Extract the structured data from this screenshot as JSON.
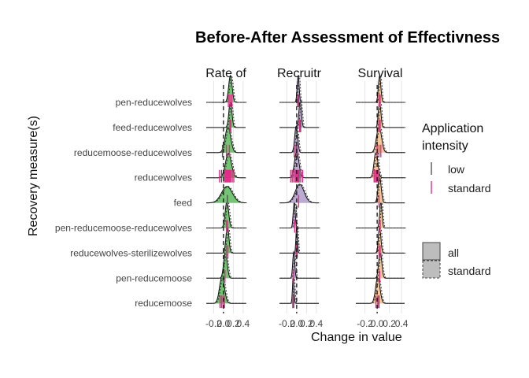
{
  "chart_data": {
    "type": "ridgeline",
    "title": "Before-After Assessment of Effectivness",
    "xlabel": "Change in value",
    "ylabel": "Recovery measure(s)",
    "xlim": [
      -0.35,
      0.45
    ],
    "x_ticks": [
      -0.2,
      0.0,
      0.2,
      0.4
    ],
    "x_tick_labels": [
      "-0.2",
      "0.0",
      "0.2",
      "0.4"
    ],
    "reference_line_x": 0,
    "categories": [
      "pen-reducewolves",
      "feed-reducewolves",
      "reducemoose-reducewolves",
      "reducewolves",
      "feed",
      "pen-reducemoose-reducewolves",
      "reducewolves-sterilizewolves",
      "pen-reducemoose",
      "reducemoose"
    ],
    "panels": [
      {
        "label": "Rate of",
        "fill": "#6cc26c",
        "series": [
          {
            "mean": 0.14,
            "sd": 0.035,
            "rugs": [
              {
                "x": 0.1,
                "c": "standard"
              },
              {
                "x": 0.13,
                "c": "standard"
              },
              {
                "x": 0.17,
                "c": "standard"
              }
            ]
          },
          {
            "mean": 0.14,
            "sd": 0.03,
            "rugs": [
              {
                "x": 0.13,
                "c": "standard"
              },
              {
                "x": 0.15,
                "c": "standard"
              }
            ]
          },
          {
            "mean": 0.09,
            "sd": 0.055,
            "rugs": [
              {
                "x": -0.02,
                "c": "low"
              },
              {
                "x": 0.06,
                "c": "standard"
              },
              {
                "x": 0.12,
                "c": "standard"
              }
            ]
          },
          {
            "mean": 0.1,
            "sd": 0.06,
            "rugs": [
              {
                "x": -0.08,
                "c": "standard"
              },
              {
                "x": -0.04,
                "c": "low"
              },
              {
                "x": 0.0,
                "c": "standard"
              },
              {
                "x": 0.03,
                "c": "standard"
              },
              {
                "x": 0.05,
                "c": "standard"
              },
              {
                "x": 0.07,
                "c": "standard"
              },
              {
                "x": 0.09,
                "c": "standard"
              },
              {
                "x": 0.11,
                "c": "standard"
              },
              {
                "x": 0.13,
                "c": "standard"
              },
              {
                "x": 0.15,
                "c": "standard"
              },
              {
                "x": 0.18,
                "c": "standard"
              },
              {
                "x": 0.21,
                "c": "standard"
              }
            ]
          },
          {
            "mean": 0.07,
            "sd": 0.11,
            "rugs": [
              {
                "x": 0.08,
                "c": "low"
              }
            ]
          },
          {
            "mean": 0.07,
            "sd": 0.035,
            "rugs": [
              {
                "x": 0.06,
                "c": "standard"
              },
              {
                "x": 0.08,
                "c": "standard"
              }
            ]
          },
          {
            "mean": 0.08,
            "sd": 0.03,
            "rugs": [
              {
                "x": 0.06,
                "c": "standard"
              },
              {
                "x": 0.09,
                "c": "standard"
              }
            ]
          },
          {
            "mean": 0.04,
            "sd": 0.035,
            "rugs": [
              {
                "x": 0.03,
                "c": "standard"
              }
            ]
          },
          {
            "mean": -0.03,
            "sd": 0.05,
            "rugs": [
              {
                "x": -0.07,
                "c": "standard"
              },
              {
                "x": -0.04,
                "c": "standard"
              },
              {
                "x": -0.01,
                "c": "standard"
              },
              {
                "x": 0.02,
                "c": "standard"
              }
            ]
          }
        ]
      },
      {
        "label": "Recruitr",
        "fill": "#b8a6cf",
        "series": [
          {
            "mean": 0.03,
            "sd": 0.02,
            "rugs": [
              {
                "x": 0.02,
                "c": "standard"
              },
              {
                "x": 0.04,
                "c": "low"
              }
            ]
          },
          {
            "mean": 0.07,
            "sd": 0.025,
            "rugs": [
              {
                "x": 0.06,
                "c": "standard"
              },
              {
                "x": 0.08,
                "c": "low"
              }
            ]
          },
          {
            "mean": -0.01,
            "sd": 0.03,
            "rugs": [
              {
                "x": -0.05,
                "c": "standard"
              },
              {
                "x": -0.01,
                "c": "low"
              },
              {
                "x": 0.01,
                "c": "standard"
              }
            ]
          },
          {
            "mean": 0.0,
            "sd": 0.045,
            "rugs": [
              {
                "x": -0.12,
                "c": "standard"
              },
              {
                "x": -0.09,
                "c": "standard"
              },
              {
                "x": -0.06,
                "c": "standard"
              },
              {
                "x": -0.03,
                "c": "standard"
              },
              {
                "x": -0.01,
                "c": "standard"
              },
              {
                "x": 0.01,
                "c": "standard"
              },
              {
                "x": 0.03,
                "c": "standard"
              },
              {
                "x": 0.05,
                "c": "low"
              },
              {
                "x": 0.08,
                "c": "standard"
              },
              {
                "x": 0.12,
                "c": "standard"
              }
            ]
          },
          {
            "mean": 0.06,
            "sd": 0.09,
            "rugs": [
              {
                "x": 0.04,
                "c": "standard"
              }
            ]
          },
          {
            "mean": -0.05,
            "sd": 0.02,
            "rugs": [
              {
                "x": -0.04,
                "c": "standard"
              }
            ]
          },
          {
            "mean": 0.0,
            "sd": 0.015,
            "rugs": [
              {
                "x": -0.01,
                "c": "standard"
              },
              {
                "x": 0.01,
                "c": "low"
              }
            ]
          },
          {
            "mean": -0.06,
            "sd": 0.02,
            "rugs": [
              {
                "x": -0.06,
                "c": "standard"
              }
            ]
          },
          {
            "mean": -0.07,
            "sd": 0.015,
            "rugs": [
              {
                "x": -0.08,
                "c": "standard"
              },
              {
                "x": -0.06,
                "c": "low"
              }
            ]
          }
        ]
      },
      {
        "label": "Survival",
        "fill": "#f6c493",
        "series": [
          {
            "mean": 0.04,
            "sd": 0.02,
            "rugs": [
              {
                "x": 0.03,
                "c": "standard"
              },
              {
                "x": 0.05,
                "c": "standard"
              }
            ]
          },
          {
            "mean": 0.04,
            "sd": 0.02,
            "rugs": [
              {
                "x": 0.03,
                "c": "standard"
              },
              {
                "x": 0.05,
                "c": "standard"
              }
            ]
          },
          {
            "mean": 0.03,
            "sd": 0.04,
            "rugs": [
              {
                "x": 0.0,
                "c": "standard"
              },
              {
                "x": 0.03,
                "c": "standard"
              },
              {
                "x": 0.06,
                "c": "standard"
              }
            ]
          },
          {
            "mean": -0.02,
            "sd": 0.03,
            "rugs": [
              {
                "x": -0.05,
                "c": "standard"
              },
              {
                "x": -0.03,
                "c": "standard"
              },
              {
                "x": -0.01,
                "c": "standard"
              },
              {
                "x": 0.01,
                "c": "standard"
              },
              {
                "x": 0.03,
                "c": "low"
              }
            ]
          },
          {
            "mean": 0.04,
            "sd": 0.025,
            "rugs": [
              {
                "x": 0.03,
                "c": "standard"
              }
            ]
          },
          {
            "mean": 0.06,
            "sd": 0.018,
            "rugs": [
              {
                "x": 0.05,
                "c": "standard"
              }
            ]
          },
          {
            "mean": 0.04,
            "sd": 0.02,
            "rugs": [
              {
                "x": 0.03,
                "c": "standard"
              },
              {
                "x": 0.05,
                "c": "standard"
              }
            ]
          },
          {
            "mean": 0.05,
            "sd": 0.025,
            "rugs": [
              {
                "x": 0.04,
                "c": "standard"
              }
            ]
          },
          {
            "mean": 0.01,
            "sd": 0.035,
            "rugs": [
              {
                "x": -0.02,
                "c": "standard"
              },
              {
                "x": 0.01,
                "c": "standard"
              },
              {
                "x": 0.03,
                "c": "low"
              }
            ]
          }
        ]
      }
    ],
    "legend": {
      "color_title": "Application intensity",
      "color_items": [
        {
          "label": "low",
          "color": "#555555"
        },
        {
          "label": "standard",
          "color": "#e7298a"
        }
      ],
      "linetype_items": [
        {
          "label": "all",
          "style": "solid"
        },
        {
          "label": "standard",
          "style": "dashed"
        }
      ]
    }
  }
}
